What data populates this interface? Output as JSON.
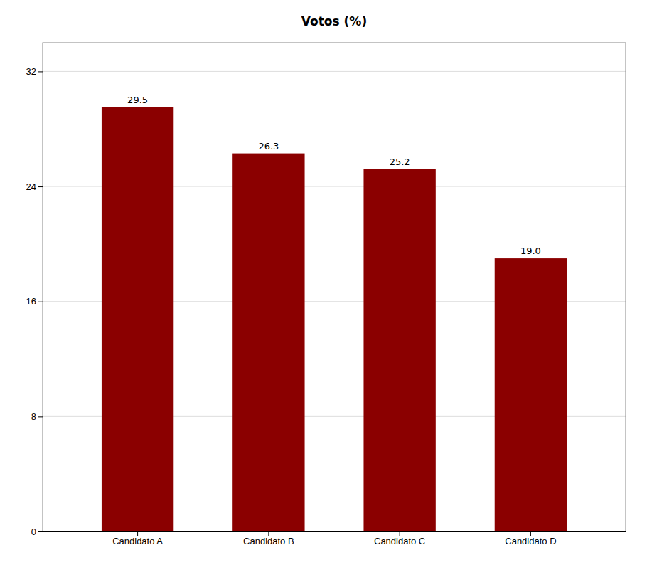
{
  "chart_data": {
    "type": "bar",
    "title": "Votos (%)",
    "categories": [
      "Candidato A",
      "Candidato B",
      "Candidato C",
      "Candidato D"
    ],
    "values": [
      29.5,
      26.3,
      25.2,
      19.0
    ],
    "value_labels": [
      "29.5",
      "26.3",
      "25.2",
      "19.0"
    ],
    "data_labels": true,
    "color": "#8B0000",
    "ylim": [
      0,
      34
    ],
    "yticks": [
      0,
      8,
      16,
      24,
      32
    ],
    "grid": true
  }
}
